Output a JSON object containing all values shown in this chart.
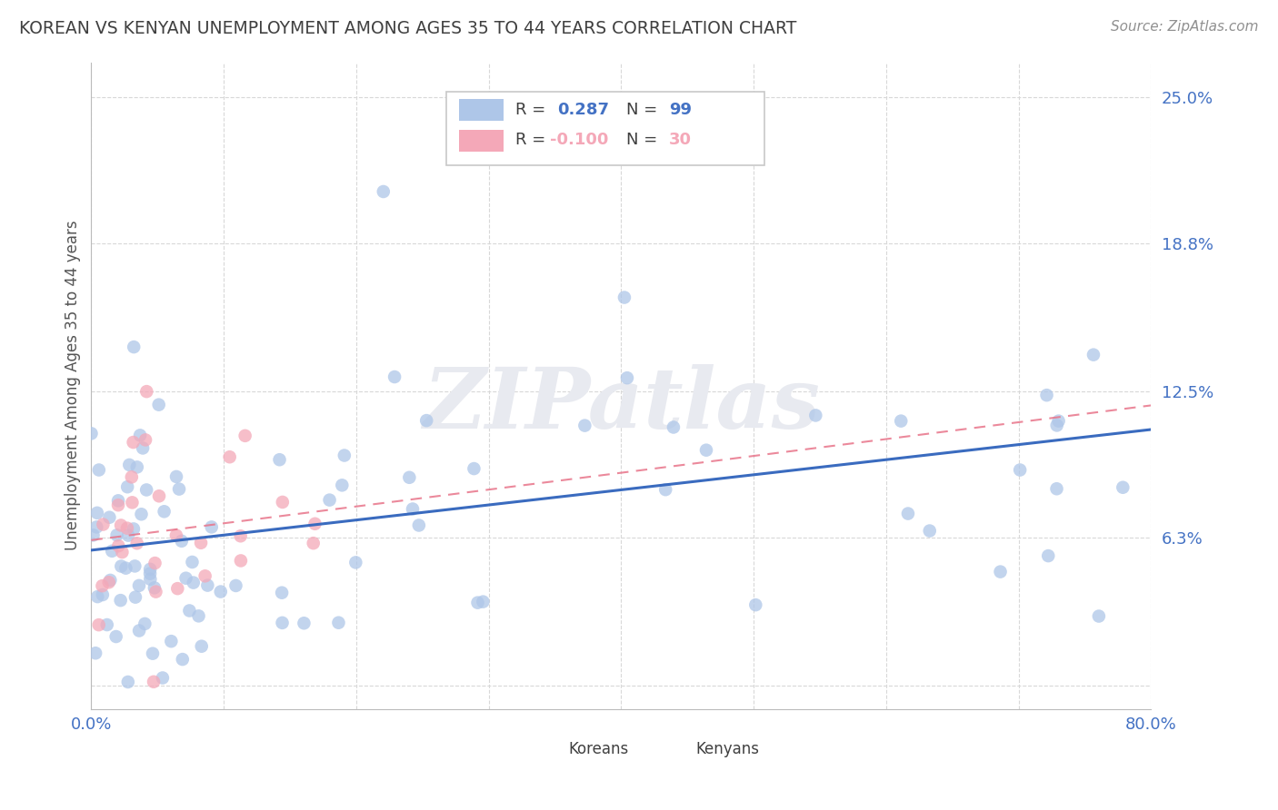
{
  "title": "KOREAN VS KENYAN UNEMPLOYMENT AMONG AGES 35 TO 44 YEARS CORRELATION CHART",
  "source": "Source: ZipAtlas.com",
  "ylabel": "Unemployment Among Ages 35 to 44 years",
  "xlim": [
    0.0,
    0.8
  ],
  "ylim": [
    -0.01,
    0.265
  ],
  "ytick_vals": [
    0.0,
    0.063,
    0.125,
    0.188,
    0.25
  ],
  "ytick_labels": [
    "",
    "6.3%",
    "12.5%",
    "18.8%",
    "25.0%"
  ],
  "korean_R": 0.287,
  "korean_N": 99,
  "kenyan_R": -0.1,
  "kenyan_N": 30,
  "korean_color": "#aec6e8",
  "kenyan_color": "#f4a8b8",
  "korean_line_color": "#3a6bbf",
  "kenyan_line_color": "#e8748a",
  "title_color": "#404040",
  "source_color": "#909090",
  "label_color": "#4472c4",
  "background_color": "#ffffff",
  "grid_color": "#d8d8d8",
  "watermark_color": "#e8eaf0"
}
